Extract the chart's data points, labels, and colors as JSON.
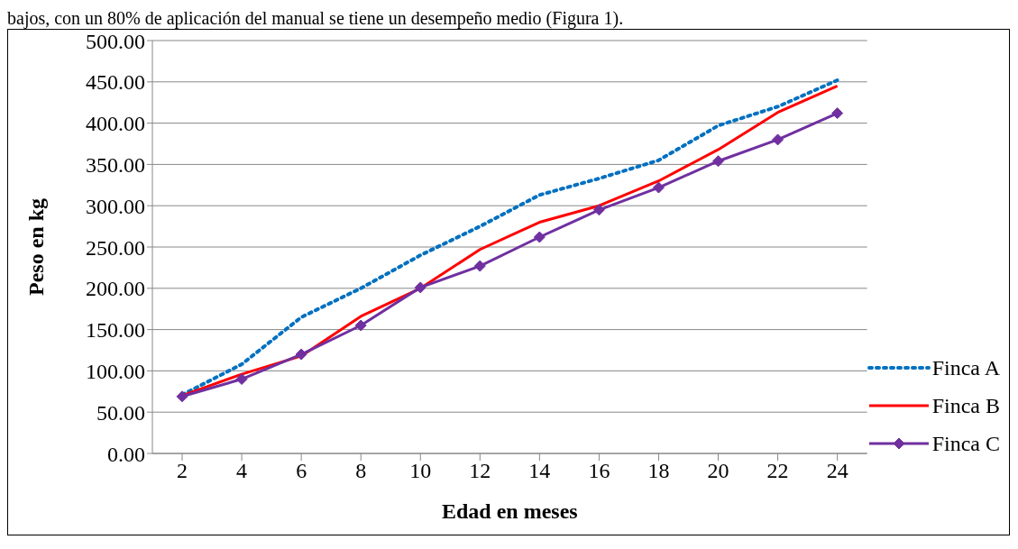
{
  "chart_data": {
    "type": "line",
    "xlabel": "Edad en meses",
    "ylabel": "Peso en kg",
    "annotations": [
      "bajos, con un 80% de aplicación del manual se tiene un desempeño medio (Figura 1)."
    ],
    "x": [
      2,
      4,
      6,
      8,
      10,
      12,
      14,
      16,
      18,
      20,
      22,
      24
    ],
    "xlim": [
      1,
      25
    ],
    "xticks": [
      2,
      4,
      6,
      8,
      10,
      12,
      14,
      16,
      18,
      20,
      22,
      24
    ],
    "series": [
      {
        "name": "Finca A",
        "color": "#0070c0",
        "line_style": "dotted",
        "marker": "none",
        "values": [
          71,
          108,
          165,
          200,
          240,
          275,
          313,
          333,
          355,
          397,
          420,
          452
        ]
      },
      {
        "name": "Finca B",
        "color": "#ff0000",
        "line_style": "solid",
        "marker": "none",
        "values": [
          70,
          96,
          118,
          166,
          200,
          247,
          280,
          300,
          330,
          368,
          413,
          445
        ]
      },
      {
        "name": "Finca C",
        "color": "#7030a0",
        "line_style": "solid",
        "marker": "diamond",
        "values": [
          69,
          90,
          120,
          155,
          201,
          227,
          262,
          295,
          322,
          354,
          380,
          412
        ]
      }
    ],
    "ylim": [
      0,
      500
    ],
    "yticks": [
      {
        "value": 0,
        "label": "0.00"
      },
      {
        "value": 50,
        "label": "50.00"
      },
      {
        "value": 100,
        "label": "100.00"
      },
      {
        "value": 150,
        "label": "150.00"
      },
      {
        "value": 200,
        "label": "200.00"
      },
      {
        "value": 250,
        "label": "250.00"
      },
      {
        "value": 300,
        "label": "300.00"
      },
      {
        "value": 350,
        "label": "350.00"
      },
      {
        "value": 400,
        "label": "400.00"
      },
      {
        "value": 450,
        "label": "450.00"
      },
      {
        "value": 500,
        "label": "500.00"
      }
    ],
    "grid": "y",
    "legend": "right"
  }
}
